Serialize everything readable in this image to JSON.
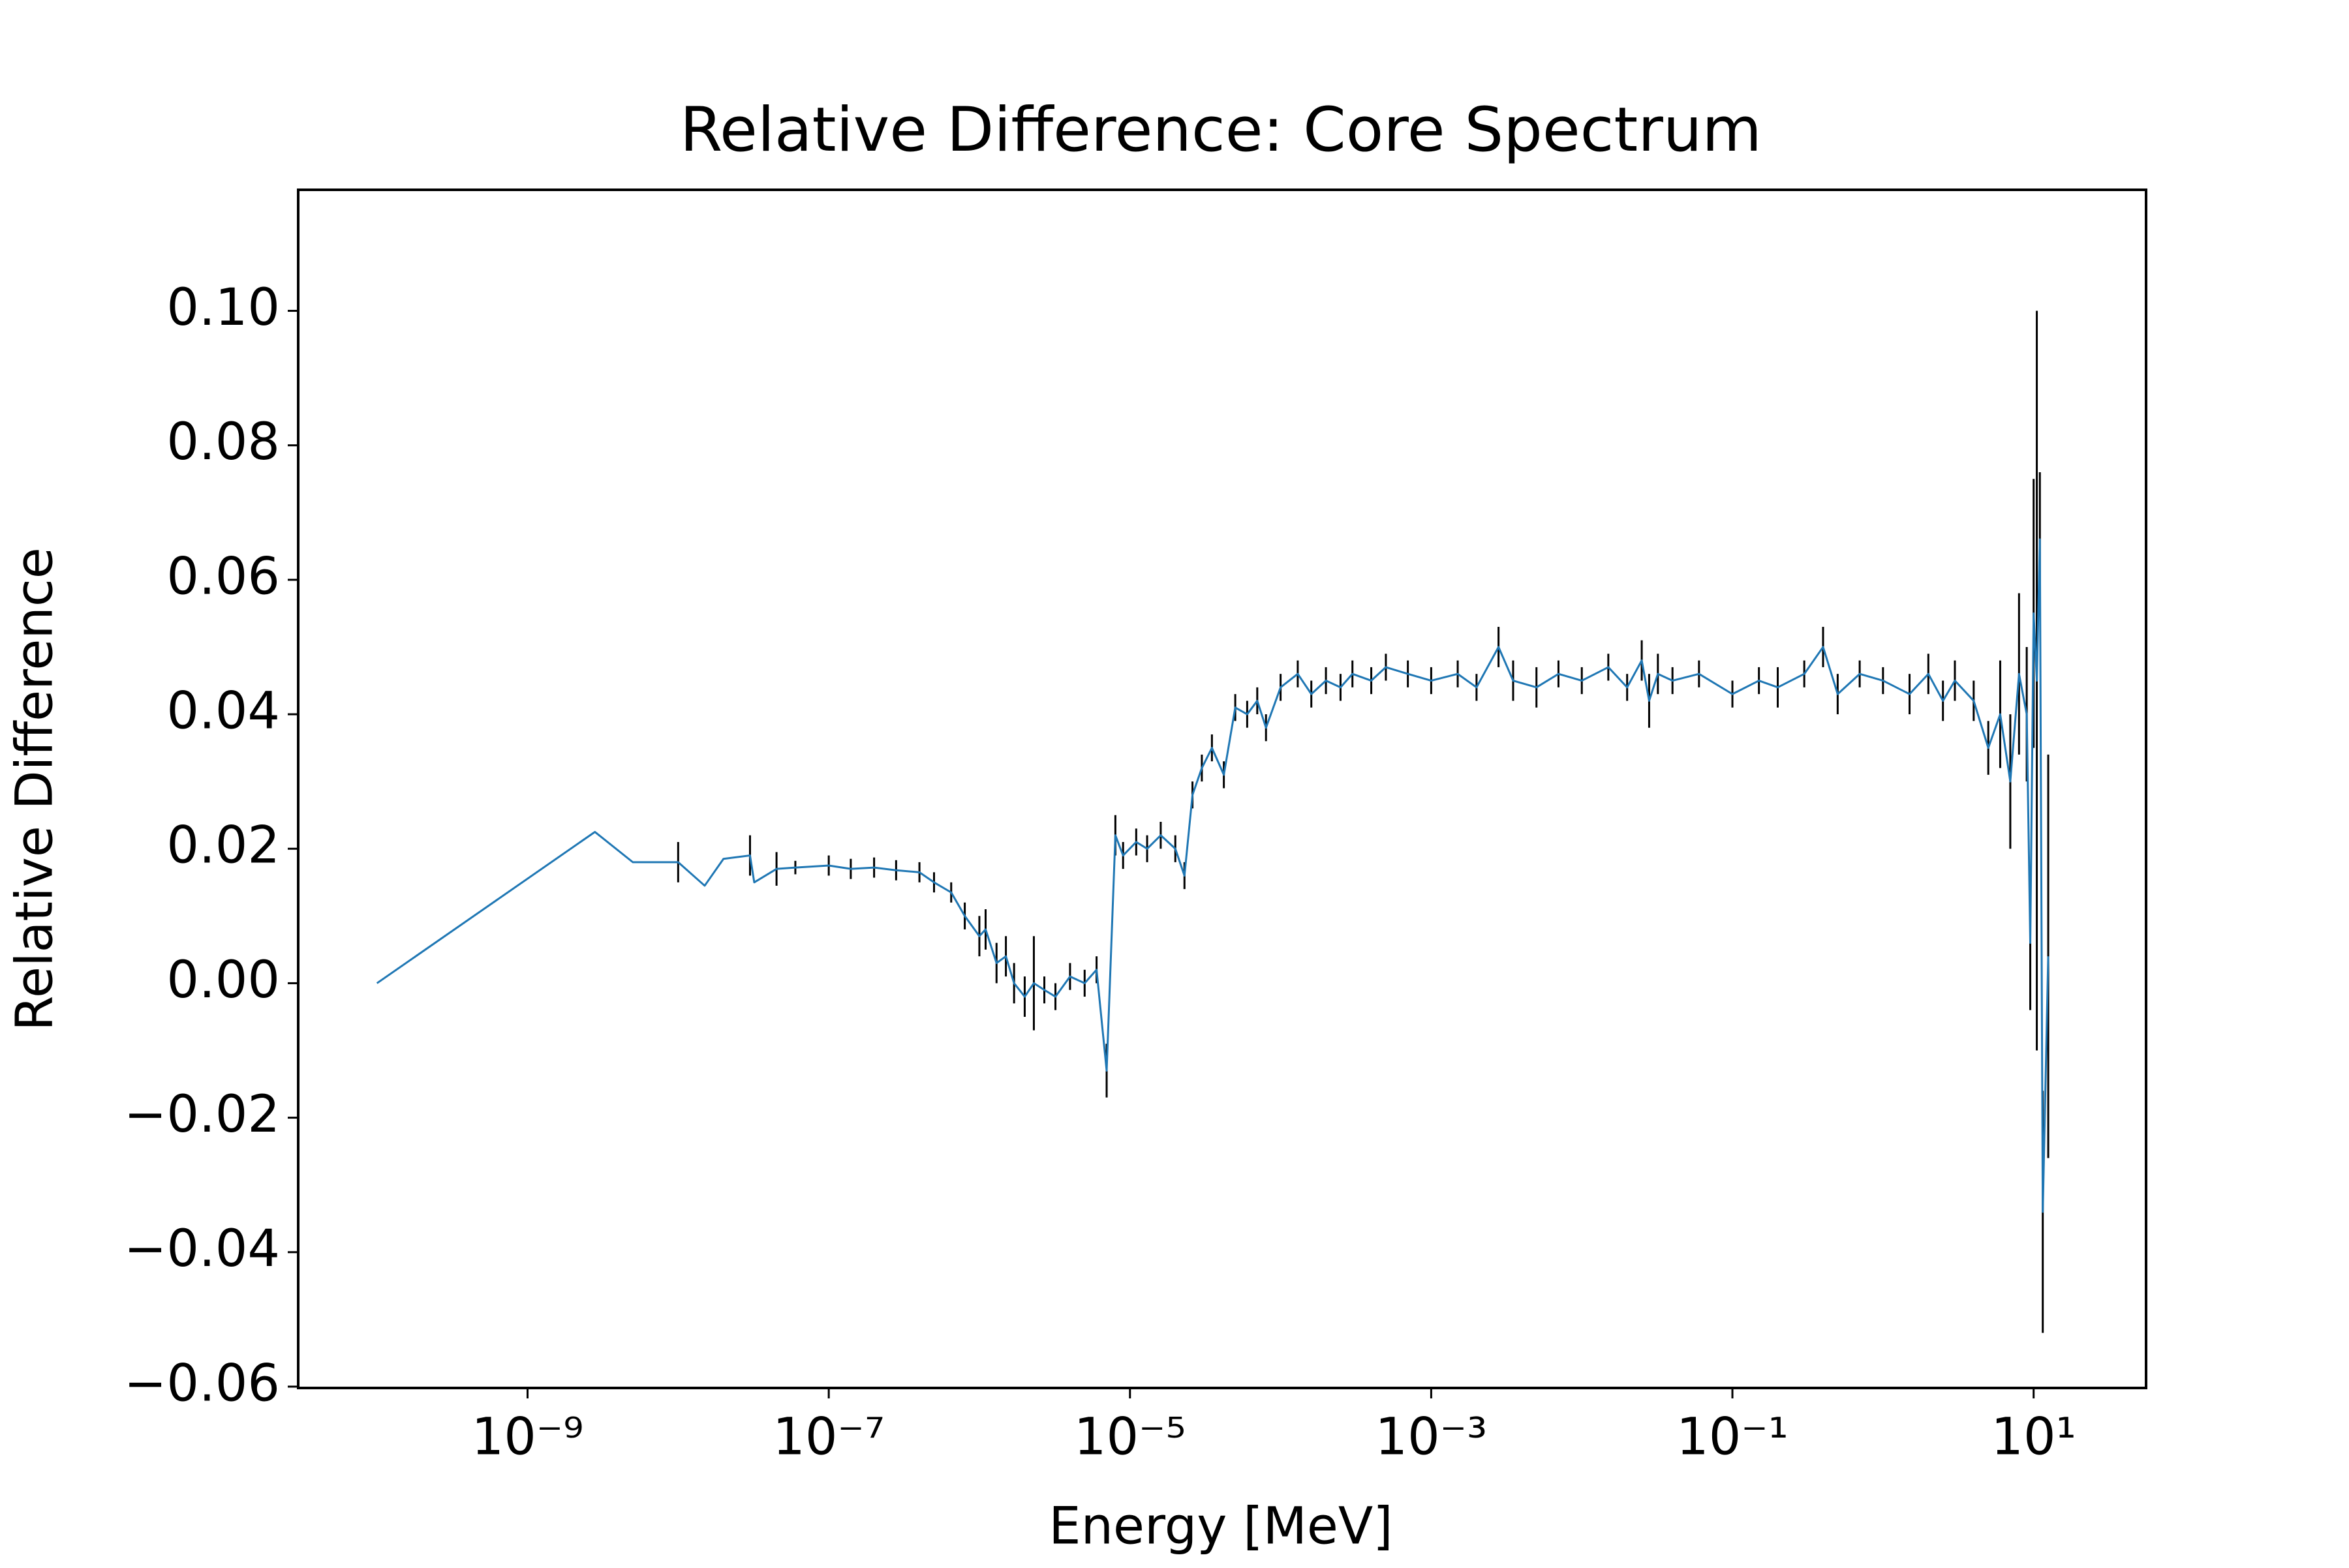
{
  "chart_data": {
    "type": "errorbar-line",
    "title": "Relative Difference: Core Spectrum",
    "xlabel": "Energy [MeV]",
    "ylabel": "Relative Difference",
    "xscale": "log",
    "color": "#1f77b4",
    "error_color": "#000000",
    "xlim": [
      3e-11,
      55.8
    ],
    "ylim": [
      -0.0602,
      0.118
    ],
    "xticks": [
      {
        "value": 1e-09,
        "label": "10⁻⁹"
      },
      {
        "value": 1e-07,
        "label": "10⁻⁷"
      },
      {
        "value": 1e-05,
        "label": "10⁻⁵"
      },
      {
        "value": 0.001,
        "label": "10⁻³"
      },
      {
        "value": 0.1,
        "label": "10⁻¹"
      },
      {
        "value": 10,
        "label": "10¹"
      }
    ],
    "yticks": [
      {
        "value": -0.06,
        "label": "−0.06"
      },
      {
        "value": -0.04,
        "label": "−0.04"
      },
      {
        "value": -0.02,
        "label": "−0.02"
      },
      {
        "value": 0,
        "label": "0.00"
      },
      {
        "value": 0.02,
        "label": "0.02"
      },
      {
        "value": 0.04,
        "label": "0.04"
      },
      {
        "value": 0.06,
        "label": "0.06"
      },
      {
        "value": 0.08,
        "label": "0.08"
      },
      {
        "value": 0.1,
        "label": "0.10"
      }
    ],
    "x": [
      1e-10,
      2.8e-09,
      5e-09,
      1e-08,
      1.5e-08,
      2e-08,
      3e-08,
      3.2e-08,
      4.5e-08,
      6e-08,
      1e-07,
      1.4e-07,
      2e-07,
      2.8e-07,
      4e-07,
      5e-07,
      6.5e-07,
      8e-07,
      1e-06,
      1.1e-06,
      1.3e-06,
      1.5e-06,
      1.7e-06,
      2e-06,
      2.3e-06,
      2.7e-06,
      3.2e-06,
      4e-06,
      5e-06,
      6e-06,
      7e-06,
      8e-06,
      9e-06,
      1.1e-05,
      1.3e-05,
      1.6e-05,
      2e-05,
      2.3e-05,
      2.6e-05,
      3e-05,
      3.5e-05,
      4.2e-05,
      5e-05,
      6e-05,
      7e-05,
      8e-05,
      0.0001,
      0.00013,
      0.00016,
      0.0002,
      0.00025,
      0.0003,
      0.0004,
      0.0005,
      0.0007,
      0.001,
      0.0015,
      0.002,
      0.0028,
      0.0035,
      0.005,
      0.007,
      0.01,
      0.015,
      0.02,
      0.025,
      0.028,
      0.032,
      0.04,
      0.06,
      0.1,
      0.15,
      0.2,
      0.3,
      0.4,
      0.5,
      0.7,
      1,
      1.5,
      2,
      2.5,
      3,
      4,
      5,
      6,
      7,
      8,
      9,
      9.5,
      10,
      10.5,
      11,
      11.5,
      12.5
    ],
    "values": [
      0,
      0.0225,
      0.018,
      0.018,
      0.0145,
      0.0185,
      0.019,
      0.015,
      0.017,
      0.0172,
      0.0175,
      0.017,
      0.0172,
      0.0168,
      0.0165,
      0.015,
      0.0135,
      0.01,
      0.007,
      0.008,
      0.003,
      0.004,
      0.0,
      -0.002,
      0.0,
      -0.001,
      -0.002,
      0.001,
      0.0,
      0.002,
      -0.013,
      0.022,
      0.019,
      0.021,
      0.02,
      0.022,
      0.02,
      0.016,
      0.028,
      0.032,
      0.035,
      0.031,
      0.041,
      0.04,
      0.042,
      0.038,
      0.044,
      0.046,
      0.043,
      0.045,
      0.044,
      0.046,
      0.045,
      0.047,
      0.046,
      0.045,
      0.046,
      0.044,
      0.05,
      0.045,
      0.044,
      0.046,
      0.045,
      0.047,
      0.044,
      0.048,
      0.042,
      0.046,
      0.045,
      0.046,
      0.043,
      0.045,
      0.044,
      0.046,
      0.05,
      0.043,
      0.046,
      0.045,
      0.043,
      0.046,
      0.042,
      0.045,
      0.042,
      0.035,
      0.04,
      0.03,
      0.046,
      0.04,
      0.006,
      0.055,
      0.045,
      0.066,
      -0.034,
      0.004
    ],
    "errors": [
      0,
      0,
      0,
      0.003,
      0,
      0,
      0.003,
      0,
      0.0025,
      0.001,
      0.0015,
      0.0015,
      0.0015,
      0.0015,
      0.0015,
      0.0015,
      0.0015,
      0.002,
      0.003,
      0.003,
      0.003,
      0.003,
      0.003,
      0.003,
      0.007,
      0.002,
      0.002,
      0.002,
      0.002,
      0.002,
      0.004,
      0.003,
      0.002,
      0.002,
      0.002,
      0.002,
      0.002,
      0.002,
      0.002,
      0.002,
      0.002,
      0.002,
      0.002,
      0.002,
      0.002,
      0.002,
      0.002,
      0.002,
      0.002,
      0.002,
      0.002,
      0.002,
      0.002,
      0.002,
      0.002,
      0.002,
      0.002,
      0.002,
      0.003,
      0.003,
      0.003,
      0.002,
      0.002,
      0.002,
      0.002,
      0.003,
      0.004,
      0.003,
      0.002,
      0.002,
      0.002,
      0.002,
      0.003,
      0.002,
      0.003,
      0.003,
      0.002,
      0.002,
      0.003,
      0.003,
      0.003,
      0.003,
      0.003,
      0.004,
      0.008,
      0.01,
      0.012,
      0.01,
      0.01,
      0.02,
      0.055,
      0.01,
      0.018,
      0.03
    ]
  }
}
